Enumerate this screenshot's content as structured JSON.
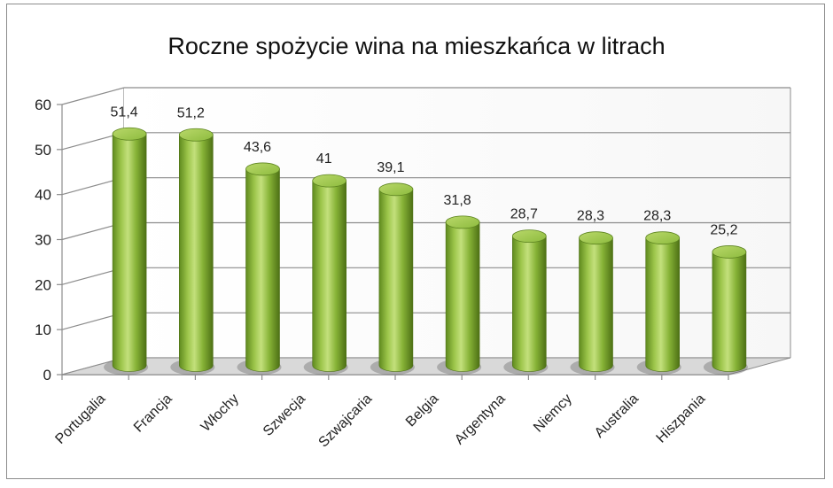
{
  "chart_data": {
    "type": "bar",
    "title": "Roczne spożycie wina na mieszkańca w litrach",
    "categories": [
      "Portugalia",
      "Francja",
      "Włochy",
      "Szwecja",
      "Szwajcaria",
      "Belgia",
      "Argentyna",
      "Niemcy",
      "Australia",
      "Hiszpania"
    ],
    "values": [
      51.4,
      51.2,
      43.6,
      41,
      39.1,
      31.8,
      28.7,
      28.3,
      28.3,
      25.2
    ],
    "data_labels": [
      "51,4",
      "51,2",
      "43,6",
      "41",
      "39,1",
      "31,8",
      "28,7",
      "28,3",
      "28,3",
      "25,2"
    ],
    "y_ticks": [
      "0",
      "10",
      "20",
      "30",
      "40",
      "50",
      "60"
    ],
    "ylim": [
      0,
      60
    ],
    "grid": true,
    "legend": "none",
    "bar_style": "3d-cylinder",
    "colors": {
      "bar_fill": "#8cb43c",
      "bar_highlight": "#c6e07a",
      "bar_shadow": "#4f7117",
      "grid": "#8c8c8c",
      "floor": "#d9d9d9"
    }
  }
}
